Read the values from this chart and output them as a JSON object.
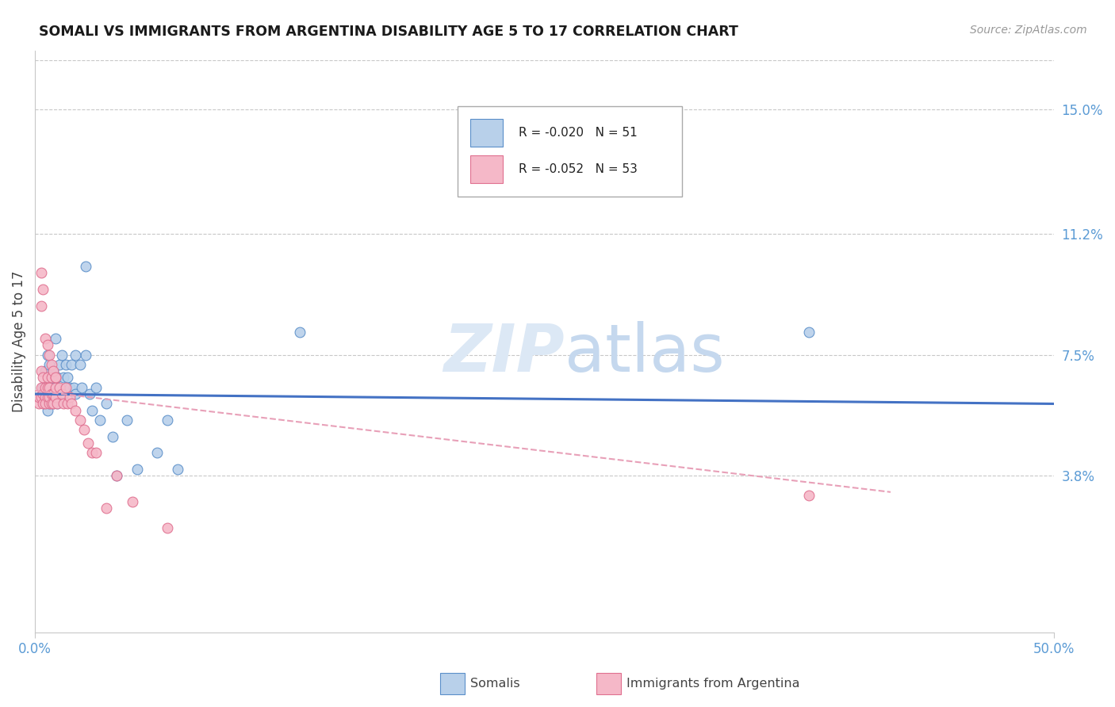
{
  "title": "SOMALI VS IMMIGRANTS FROM ARGENTINA DISABILITY AGE 5 TO 17 CORRELATION CHART",
  "source": "Source: ZipAtlas.com",
  "ylabel": "Disability Age 5 to 17",
  "ytick_labels": [
    "15.0%",
    "11.2%",
    "7.5%",
    "3.8%"
  ],
  "ytick_values": [
    0.15,
    0.112,
    0.075,
    0.038
  ],
  "xlim": [
    0.0,
    0.5
  ],
  "ylim": [
    -0.01,
    0.168
  ],
  "legend1_r": "-0.020",
  "legend1_n": "51",
  "legend2_r": "-0.052",
  "legend2_n": "53",
  "somali_fill": "#b8d0ea",
  "somali_edge": "#5b8fc9",
  "argentina_fill": "#f5b8c8",
  "argentina_edge": "#e07090",
  "somali_line_color": "#4472C4",
  "argentina_line_color": "#e8a0b8",
  "grid_color": "#c8c8c8",
  "label_color": "#5b9bd5",
  "watermark_color": "#dce8f5",
  "somali_scatter_x": [
    0.004,
    0.005,
    0.005,
    0.006,
    0.006,
    0.006,
    0.007,
    0.007,
    0.007,
    0.008,
    0.008,
    0.008,
    0.009,
    0.009,
    0.009,
    0.01,
    0.01,
    0.01,
    0.011,
    0.011,
    0.011,
    0.012,
    0.013,
    0.014,
    0.014,
    0.015,
    0.016,
    0.016,
    0.017,
    0.018,
    0.019,
    0.02,
    0.022,
    0.023,
    0.025,
    0.027,
    0.028,
    0.03,
    0.032,
    0.035,
    0.038,
    0.04,
    0.045,
    0.05,
    0.06,
    0.065,
    0.07,
    0.13,
    0.38,
    0.025,
    0.02
  ],
  "somali_scatter_y": [
    0.065,
    0.06,
    0.07,
    0.058,
    0.065,
    0.075,
    0.06,
    0.065,
    0.072,
    0.062,
    0.065,
    0.068,
    0.06,
    0.063,
    0.07,
    0.063,
    0.065,
    0.08,
    0.065,
    0.068,
    0.06,
    0.072,
    0.075,
    0.063,
    0.068,
    0.072,
    0.065,
    0.068,
    0.065,
    0.072,
    0.065,
    0.063,
    0.072,
    0.065,
    0.075,
    0.063,
    0.058,
    0.065,
    0.055,
    0.06,
    0.05,
    0.038,
    0.055,
    0.04,
    0.045,
    0.055,
    0.04,
    0.082,
    0.082,
    0.102,
    0.075
  ],
  "argentina_scatter_x": [
    0.002,
    0.002,
    0.003,
    0.003,
    0.003,
    0.004,
    0.004,
    0.004,
    0.005,
    0.005,
    0.005,
    0.006,
    0.006,
    0.006,
    0.007,
    0.007,
    0.007,
    0.008,
    0.008,
    0.008,
    0.009,
    0.009,
    0.01,
    0.01,
    0.01,
    0.011,
    0.012,
    0.013,
    0.014,
    0.015,
    0.016,
    0.017,
    0.018,
    0.02,
    0.022,
    0.024,
    0.026,
    0.028,
    0.03,
    0.035,
    0.04,
    0.048,
    0.065,
    0.003,
    0.003,
    0.004,
    0.005,
    0.006,
    0.007,
    0.008,
    0.009,
    0.01,
    0.38
  ],
  "argentina_scatter_y": [
    0.06,
    0.062,
    0.062,
    0.065,
    0.07,
    0.06,
    0.063,
    0.068,
    0.062,
    0.065,
    0.06,
    0.062,
    0.065,
    0.068,
    0.06,
    0.062,
    0.065,
    0.06,
    0.063,
    0.068,
    0.06,
    0.063,
    0.062,
    0.065,
    0.068,
    0.06,
    0.065,
    0.063,
    0.06,
    0.065,
    0.06,
    0.062,
    0.06,
    0.058,
    0.055,
    0.052,
    0.048,
    0.045,
    0.045,
    0.028,
    0.038,
    0.03,
    0.022,
    0.09,
    0.1,
    0.095,
    0.08,
    0.078,
    0.075,
    0.072,
    0.07,
    0.068,
    0.032
  ],
  "somali_trend_x": [
    0.0,
    0.5
  ],
  "somali_trend_y": [
    0.063,
    0.06
  ],
  "argentina_trend_x": [
    0.0,
    0.42
  ],
  "argentina_trend_y": [
    0.064,
    0.033
  ]
}
